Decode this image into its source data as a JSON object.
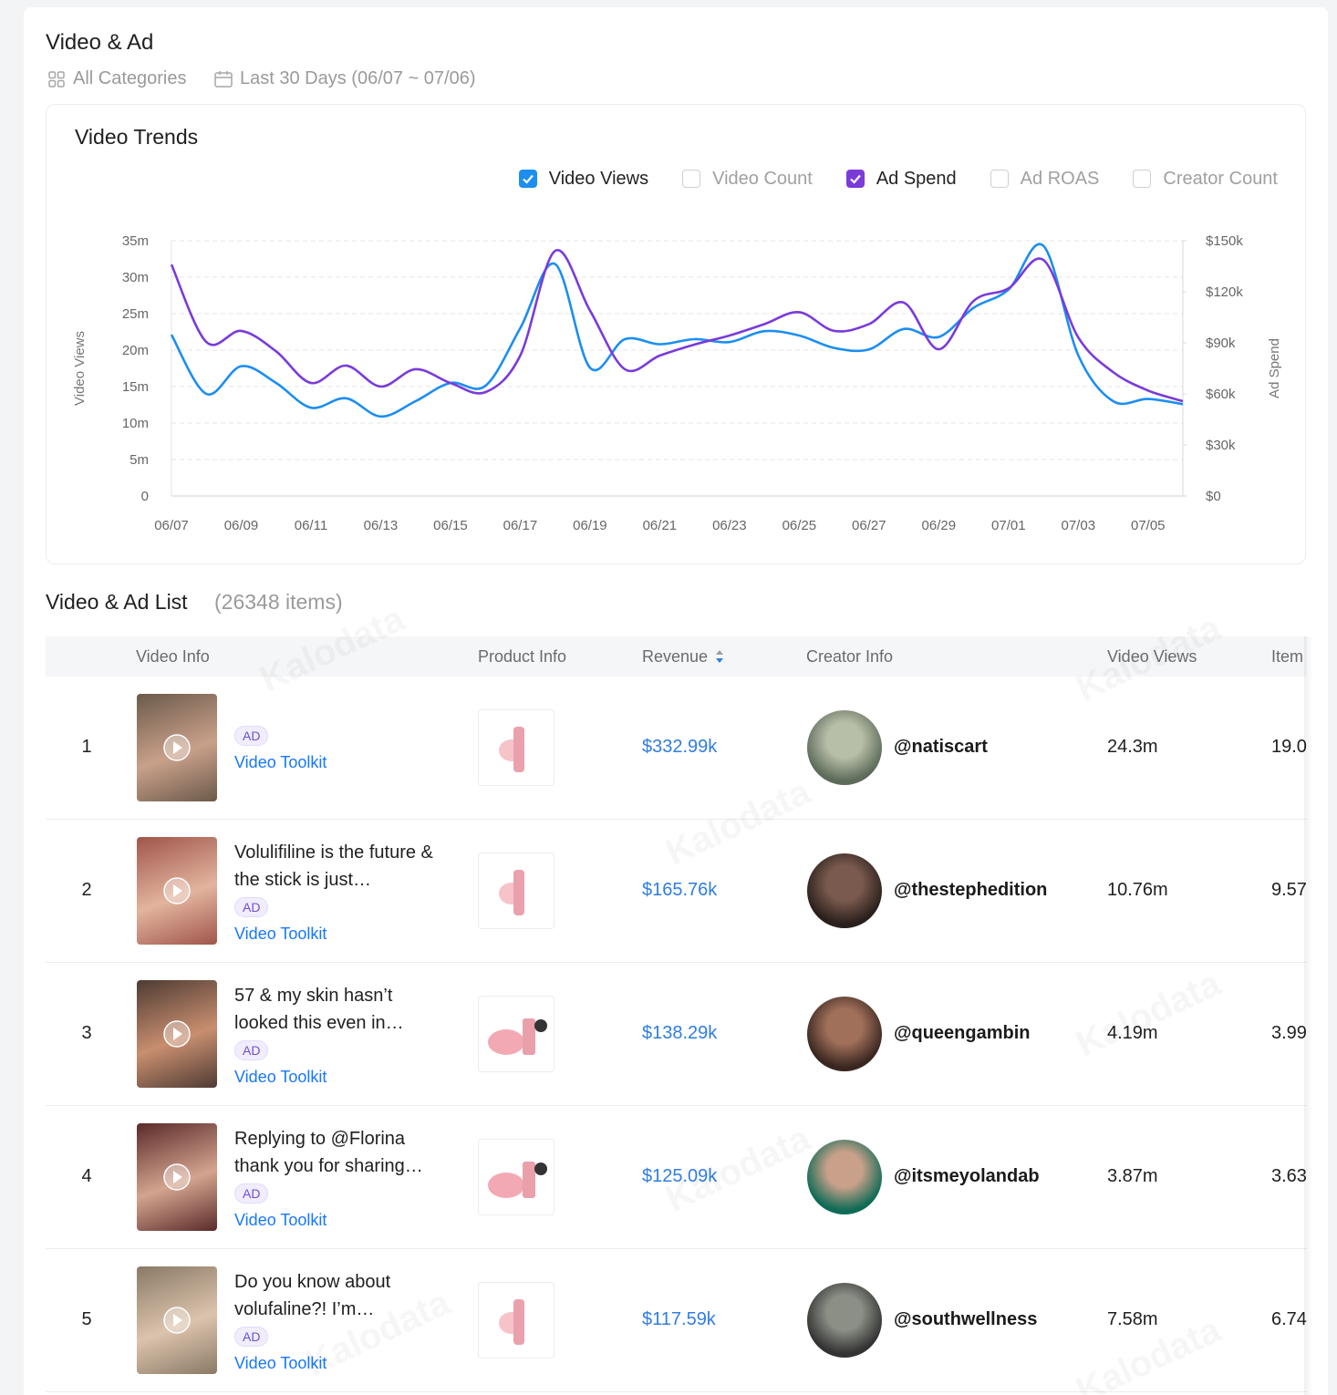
{
  "header": {
    "title": "Video & Ad",
    "category_filter": "All Categories",
    "date_filter": "Last 30 Days (06/07 ~ 07/06)"
  },
  "chart_data": {
    "type": "line",
    "title": "Video Trends",
    "categories": [
      "06/07",
      null,
      "06/09",
      null,
      "06/11",
      null,
      "06/13",
      null,
      "06/15",
      null,
      "06/17",
      null,
      "06/19",
      null,
      "06/21",
      null,
      "06/23",
      null,
      "06/25",
      null,
      "06/27",
      null,
      "06/29",
      null,
      "07/01",
      null,
      "07/03",
      null,
      "07/05",
      null
    ],
    "series": [
      {
        "name": "Video Views",
        "checked": true,
        "color": "#1c8ef0",
        "axis": "y",
        "values": [
          22.1,
          14.0,
          17.8,
          15.5,
          12.1,
          13.4,
          10.9,
          13.0,
          15.5,
          15.1,
          23.0,
          31.8,
          17.6,
          21.5,
          20.8,
          21.5,
          21.1,
          22.6,
          22.0,
          20.3,
          20.1,
          22.9,
          21.8,
          25.8,
          28.3,
          34.3,
          19.3,
          13.0,
          13.3,
          12.6
        ]
      },
      {
        "name": "Video Count",
        "checked": false
      },
      {
        "name": "Ad Spend",
        "checked": true,
        "color": "#7a3bd9",
        "axis": "y2",
        "values": [
          136,
          90.5,
          97,
          85,
          66.4,
          76.6,
          64.3,
          74.5,
          66.4,
          61,
          82.5,
          144,
          109,
          74.5,
          82.5,
          89,
          94.3,
          101,
          108,
          97,
          101,
          113.6,
          86.2,
          114.6,
          122,
          138.7,
          93.2,
          72.8,
          62,
          55.7
        ]
      },
      {
        "name": "Ad ROAS",
        "checked": false
      },
      {
        "name": "Creator Count",
        "checked": false
      }
    ],
    "ylim": [
      0,
      35
    ],
    "yticks": [
      0,
      {
        "value": 5,
        "label": "5m"
      },
      {
        "value": 10,
        "label": "10m"
      },
      {
        "value": 15,
        "label": "15m"
      },
      {
        "value": 20,
        "label": "20m"
      },
      {
        "value": 25,
        "label": "25m"
      },
      {
        "value": 30,
        "label": "30m"
      },
      {
        "value": 35,
        "label": "35m"
      }
    ],
    "y_label": "Video Views",
    "y2lim": [
      0,
      150
    ],
    "y2ticks": [
      {
        "value": 0,
        "label": "$0"
      },
      {
        "value": 30,
        "label": "$30k"
      },
      {
        "value": 60,
        "label": "$60k"
      },
      {
        "value": 90,
        "label": "$90k"
      },
      {
        "value": 120,
        "label": "$120k"
      },
      {
        "value": 150,
        "label": "$150k"
      }
    ],
    "y2_label": "Ad Spend",
    "grid": true
  },
  "list": {
    "title": "Video & Ad List",
    "count": "(26348 items)",
    "columns": [
      "Video Info",
      "Product Info",
      "Revenue",
      "Creator Info",
      "Video Views",
      "Item"
    ],
    "rows": [
      {
        "rank": 1,
        "badge": "AD",
        "tool": "Video Toolkit",
        "revenue": "$332.99k",
        "creator": "@natiscart",
        "views": "24.3m",
        "items": "19.0"
      },
      {
        "rank": 2,
        "title": "Volulifiline is the future & the stick is just…",
        "badge": "AD",
        "tool": "Video Toolkit",
        "revenue": "$165.76k",
        "creator": "@thestephedition",
        "views": "10.76m",
        "items": "9.57"
      },
      {
        "rank": 3,
        "title": "57 & my skin hasn’t looked this even in…",
        "badge": "AD",
        "tool": "Video Toolkit",
        "revenue": "$138.29k",
        "creator": "@queengambin",
        "views": "4.19m",
        "items": "3.99"
      },
      {
        "rank": 4,
        "title": "Replying to @Florina thank you for sharing…",
        "badge": "AD",
        "tool": "Video Toolkit",
        "revenue": "$125.09k",
        "creator": "@itsmeyolandab",
        "views": "3.87m",
        "items": "3.63"
      },
      {
        "rank": 5,
        "title": "Do you know about volufaline?! I’m…",
        "badge": "AD",
        "tool": "Video Toolkit",
        "revenue": "$117.59k",
        "creator": "@southwellness",
        "views": "7.58m",
        "items": "6.74"
      }
    ]
  },
  "watermark": "Kalodata"
}
